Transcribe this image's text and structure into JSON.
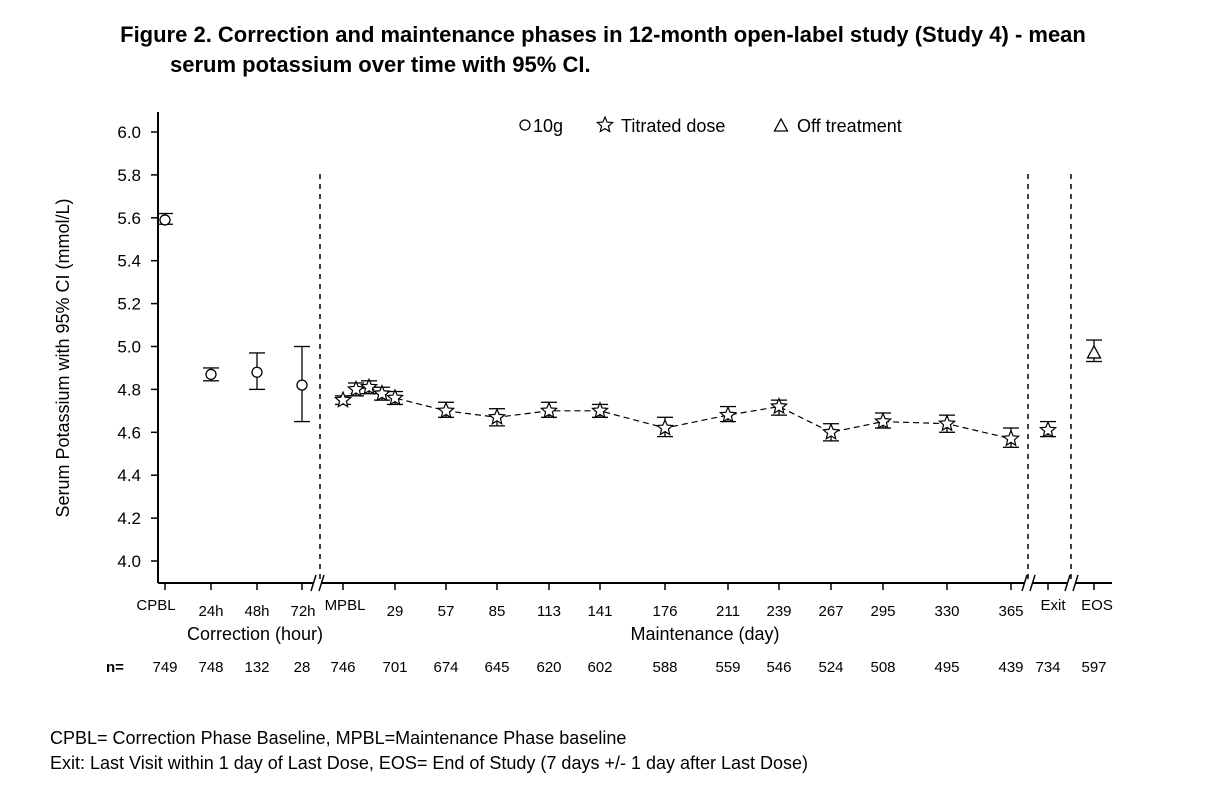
{
  "title": {
    "line1": "Figure 2. Correction and maintenance phases in 12-month open-label study (Study 4) - mean",
    "line2": "serum potassium over time with 95% CI."
  },
  "footnotes": [
    "CPBL= Correction Phase Baseline, MPBL=Maintenance Phase baseline",
    "Exit: Last Visit within 1 day of Last Dose, EOS= End of Study (7 days +/- 1 day after Last Dose)"
  ],
  "chart_data": {
    "type": "scatter",
    "ylabel": "Serum Potassium with 95% CI (mmol/L)",
    "ylim": [
      4.0,
      6.0
    ],
    "yticks": [
      "6.0",
      "5.8",
      "5.6",
      "5.4",
      "5.2",
      "5.0",
      "4.8",
      "4.6",
      "4.4",
      "4.2",
      "4.0"
    ],
    "legend": {
      "placement": "top-center",
      "entries": [
        "10g",
        "Titrated dose",
        "Off treatment"
      ]
    },
    "phase_labels": [
      "Correction (hour)",
      "Maintenance (day)"
    ],
    "n_label": "n=",
    "n_values": [
      "749",
      "748",
      "132",
      "28",
      "746",
      "701",
      "674",
      "645",
      "620",
      "602",
      "588",
      "559",
      "546",
      "524",
      "508",
      "495",
      "439",
      "734",
      "597"
    ],
    "x_tick_labels": [
      "CPBL",
      "24h",
      "48h",
      "72h",
      "MPBL",
      "29",
      "57",
      "85",
      "113",
      "141",
      "176",
      "211",
      "239",
      "267",
      "295",
      "330",
      "365",
      "Exit",
      "EOS"
    ],
    "series": [
      {
        "name": "10g",
        "marker": "circle",
        "points": [
          {
            "x": "CPBL",
            "y": 5.59,
            "lo": 5.57,
            "hi": 5.62
          },
          {
            "x": "24h",
            "y": 4.87,
            "lo": 4.84,
            "hi": 4.9
          },
          {
            "x": "48h",
            "y": 4.88,
            "lo": 4.8,
            "hi": 4.97
          },
          {
            "x": "72h",
            "y": 4.82,
            "lo": 4.65,
            "hi": 5.0
          }
        ]
      },
      {
        "name": "Titrated dose",
        "marker": "star",
        "connected": true,
        "points": [
          {
            "x": "MPBL",
            "y": 4.75,
            "lo": 4.73,
            "hi": 4.77
          },
          {
            "x": "8",
            "y": 4.8,
            "lo": 4.77,
            "hi": 4.83
          },
          {
            "x": "15",
            "y": 4.81,
            "lo": 4.78,
            "hi": 4.84
          },
          {
            "x": "22",
            "y": 4.78,
            "lo": 4.75,
            "hi": 4.81
          },
          {
            "x": "29",
            "y": 4.76,
            "lo": 4.73,
            "hi": 4.79
          },
          {
            "x": "57",
            "y": 4.7,
            "lo": 4.67,
            "hi": 4.74
          },
          {
            "x": "85",
            "y": 4.67,
            "lo": 4.63,
            "hi": 4.71
          },
          {
            "x": "113",
            "y": 4.7,
            "lo": 4.67,
            "hi": 4.74
          },
          {
            "x": "141",
            "y": 4.7,
            "lo": 4.67,
            "hi": 4.73
          },
          {
            "x": "176",
            "y": 4.62,
            "lo": 4.58,
            "hi": 4.67
          },
          {
            "x": "211",
            "y": 4.68,
            "lo": 4.65,
            "hi": 4.72
          },
          {
            "x": "239",
            "y": 4.72,
            "lo": 4.68,
            "hi": 4.75
          },
          {
            "x": "267",
            "y": 4.6,
            "lo": 4.56,
            "hi": 4.64
          },
          {
            "x": "295",
            "y": 4.65,
            "lo": 4.62,
            "hi": 4.69
          },
          {
            "x": "330",
            "y": 4.64,
            "lo": 4.6,
            "hi": 4.68
          },
          {
            "x": "365",
            "y": 4.57,
            "lo": 4.53,
            "hi": 4.62
          },
          {
            "x": "Exit",
            "y": 4.61,
            "lo": 4.58,
            "hi": 4.65
          }
        ]
      },
      {
        "name": "Off treatment",
        "marker": "triangle",
        "points": [
          {
            "x": "EOS",
            "y": 4.97,
            "lo": 4.93,
            "hi": 5.03
          }
        ]
      }
    ]
  }
}
